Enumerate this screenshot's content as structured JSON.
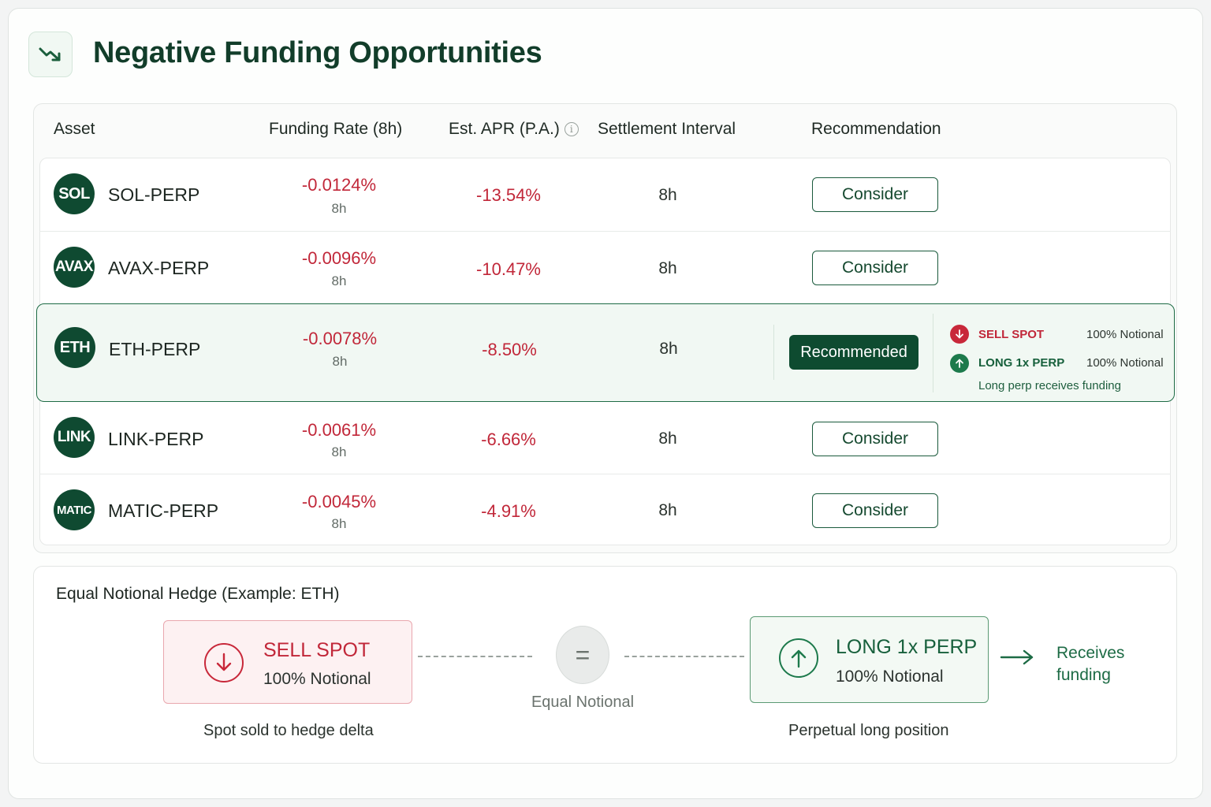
{
  "header": {
    "title": "Negative Funding Opportunities",
    "icon": "trending-down-icon"
  },
  "table": {
    "columns": {
      "asset": "Asset",
      "funding_rate": "Funding Rate (8h)",
      "apr": "Est. APR (P.A.)",
      "interval": "Settlement Interval",
      "recommendation": "Recommendation"
    },
    "rows": [
      {
        "badge": "SOL",
        "asset": "SOL-PERP",
        "rate": "-0.0124%",
        "rate_sub": "8h",
        "apr": "-13.54%",
        "interval": "8h",
        "action": "Consider"
      },
      {
        "badge": "AVAX",
        "asset": "AVAX-PERP",
        "rate": "-0.0096%",
        "rate_sub": "8h",
        "apr": "-10.47%",
        "interval": "8h",
        "action": "Consider"
      },
      {
        "badge": "ETH",
        "asset": "ETH-PERP",
        "rate": "-0.0078%",
        "rate_sub": "8h",
        "apr": "-8.50%",
        "interval": "8h",
        "action": "Recommended",
        "legs": [
          {
            "label": "SELL SPOT",
            "notional": "100% Notional"
          },
          {
            "label": "LONG 1x PERP",
            "notional": "100% Notional"
          }
        ],
        "note": "Long perp receives funding"
      },
      {
        "badge": "LINK",
        "asset": "LINK-PERP",
        "rate": "-0.0061%",
        "rate_sub": "8h",
        "apr": "-6.66%",
        "interval": "8h",
        "action": "Consider"
      },
      {
        "badge": "MATIC",
        "asset": "MATIC-PERP",
        "rate": "-0.0045%",
        "rate_sub": "8h",
        "apr": "-4.91%",
        "interval": "8h",
        "action": "Consider"
      }
    ]
  },
  "hedge": {
    "title": "Equal Notional Hedge (Example: ETH)",
    "sell": {
      "label": "SELL SPOT",
      "notional": "100% Notional",
      "caption": "Spot sold to hedge delta"
    },
    "equal": {
      "symbol": "=",
      "caption": "Equal Notional"
    },
    "long": {
      "label": "LONG 1x PERP",
      "notional": "100% Notional",
      "caption": "Perpetual long position"
    },
    "result": "Receives funding"
  },
  "colors": {
    "brand_green": "#0f4a31",
    "negative_red": "#c12739",
    "sell_bg": "#fdf1f2",
    "long_bg": "#f3f9f4"
  }
}
